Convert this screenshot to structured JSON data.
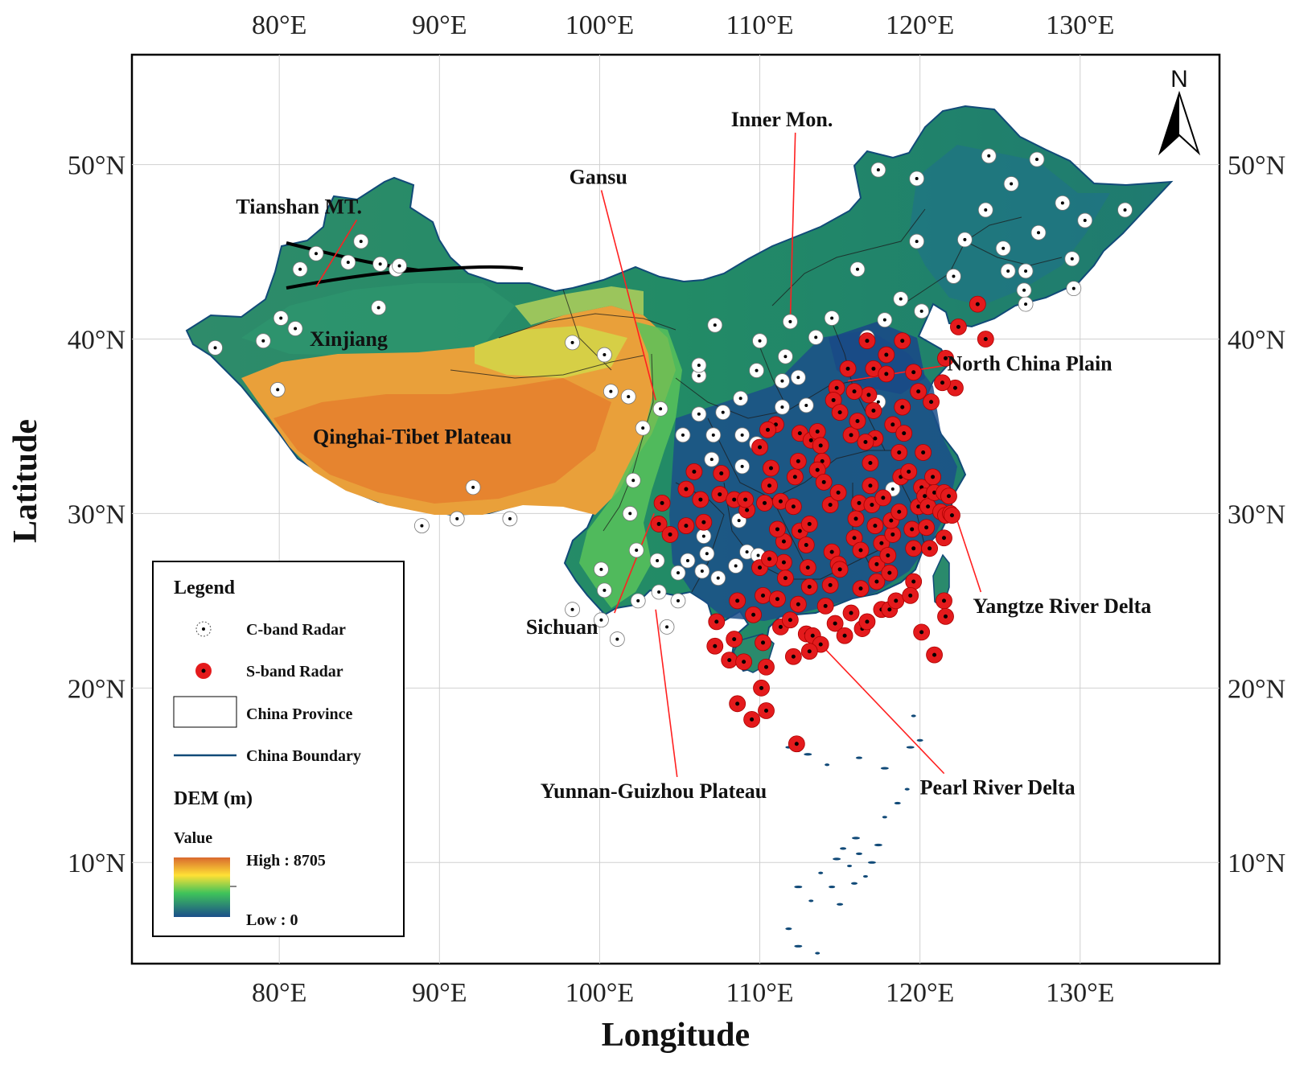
{
  "axes": {
    "x_title": "Longitude",
    "y_title": "Latitude",
    "lon_ticks": [
      {
        "value": 80,
        "label": "80°E"
      },
      {
        "value": 90,
        "label": "90°E"
      },
      {
        "value": 100,
        "label": "100°E"
      },
      {
        "value": 110,
        "label": "110°E"
      },
      {
        "value": 120,
        "label": "120°E"
      },
      {
        "value": 130,
        "label": "130°E"
      }
    ],
    "lat_ticks": [
      {
        "value": 50,
        "label": "50°N"
      },
      {
        "value": 40,
        "label": "40°N"
      },
      {
        "value": 30,
        "label": "30°N"
      },
      {
        "value": 20,
        "label": "20°N"
      },
      {
        "value": 10,
        "label": "10°N"
      }
    ],
    "lon_range": [
      70.8,
      138.7
    ],
    "lat_range": [
      4.2,
      56.3
    ]
  },
  "north_arrow": {
    "label": "N"
  },
  "labels": [
    {
      "id": "tianshan",
      "text": "Tianshan MT.",
      "lon": 77.3,
      "lat": 47.2,
      "leader_to": [
        82.3,
        43.0
      ]
    },
    {
      "id": "xinjiang",
      "text": "Xinjiang",
      "lon": 81.9,
      "lat": 39.6
    },
    {
      "id": "gansu",
      "text": "Gansu",
      "lon": 98.1,
      "lat": 48.9,
      "leader_to": [
        103.5,
        36.5
      ]
    },
    {
      "id": "inner-mon",
      "text": "Inner Mon.",
      "lon": 108.2,
      "lat": 52.2,
      "leader_to": [
        111.9,
        41.0
      ]
    },
    {
      "id": "north-china-plain",
      "text": "North China Plain",
      "lon": 121.7,
      "lat": 38.2,
      "leader_to": [
        115.5,
        37.6
      ]
    },
    {
      "id": "qinghai-tibet",
      "text": "Qinghai-Tibet Plateau",
      "lon": 82.1,
      "lat": 34.0
    },
    {
      "id": "sichuan",
      "text": "Sichuan",
      "lon": 95.4,
      "lat": 23.1,
      "leader_to": [
        103.4,
        30.0
      ]
    },
    {
      "id": "yunnan-guizhou",
      "text": "Yunnan-Guizhou Plateau",
      "lon": 96.3,
      "lat": 13.7,
      "leader_to": [
        103.5,
        24.5
      ]
    },
    {
      "id": "yangtze",
      "text": "Yangtze River Delta",
      "lon": 123.3,
      "lat": 24.3,
      "leader_to": [
        122.0,
        30.5
      ]
    },
    {
      "id": "pearl",
      "text": "Pearl River Delta",
      "lon": 120.0,
      "lat": 13.9,
      "leader_to": [
        113.8,
        22.5
      ]
    }
  ],
  "legend": {
    "title": "Legend",
    "items": [
      {
        "id": "c-band",
        "label": "C-band Radar"
      },
      {
        "id": "s-band",
        "label": "S-band Radar"
      },
      {
        "id": "province",
        "label": "China Province"
      },
      {
        "id": "boundary",
        "label": "China Boundary"
      }
    ],
    "dem_title": "DEM (m)",
    "value_label": "Value",
    "high_label": "High : 8705",
    "low_label": "Low : 0"
  },
  "colors": {
    "c_band": "#ffffff",
    "s_band": "#e41a1c",
    "boundary": "#114a78",
    "province": "#1b1b1b",
    "lowland": "#1b4f8a",
    "plain": "#1f8a6c",
    "hills": "#3cb371",
    "plateau": "#e9a03a",
    "high_plateau": "#e4772b",
    "desert": "#d6cf46",
    "leader": "#ff2020"
  },
  "stations": {
    "c_band": [
      [
        76,
        39.5
      ],
      [
        79,
        39.9
      ],
      [
        79.9,
        37.1
      ],
      [
        80.1,
        41.2
      ],
      [
        81,
        40.6
      ],
      [
        81.3,
        44.0
      ],
      [
        82.3,
        44.9
      ],
      [
        84.3,
        44.4
      ],
      [
        85.1,
        45.6
      ],
      [
        86.3,
        44.3
      ],
      [
        87.3,
        44.0
      ],
      [
        87.5,
        44.2
      ],
      [
        86.2,
        41.8
      ],
      [
        88.9,
        29.3
      ],
      [
        91.1,
        29.7
      ],
      [
        92.1,
        31.5
      ],
      [
        94.4,
        29.7
      ],
      [
        98.3,
        39.8
      ],
      [
        100.3,
        39.1
      ],
      [
        100.7,
        37.0
      ],
      [
        101.8,
        36.7
      ],
      [
        103.8,
        36.0
      ],
      [
        102.7,
        34.9
      ],
      [
        102.1,
        31.9
      ],
      [
        101.9,
        30.0
      ],
      [
        102.3,
        27.9
      ],
      [
        100.1,
        26.8
      ],
      [
        100.3,
        25.6
      ],
      [
        100.1,
        23.9
      ],
      [
        98.3,
        24.5
      ],
      [
        101.1,
        22.8
      ],
      [
        102.4,
        25.0
      ],
      [
        103.7,
        25.5
      ],
      [
        103.6,
        27.3
      ],
      [
        104.2,
        23.5
      ],
      [
        104.9,
        25.0
      ],
      [
        105.5,
        27.3
      ],
      [
        104.9,
        26.6
      ],
      [
        106.4,
        26.7
      ],
      [
        106.5,
        28.7
      ],
      [
        106.7,
        27.7
      ],
      [
        107.4,
        26.3
      ],
      [
        108.5,
        27.0
      ],
      [
        109.2,
        27.8
      ],
      [
        109.9,
        27.6
      ],
      [
        108.7,
        29.6
      ],
      [
        107,
        33.1
      ],
      [
        108.9,
        32.7
      ],
      [
        105.2,
        34.5
      ],
      [
        106.2,
        35.7
      ],
      [
        107.1,
        34.5
      ],
      [
        107.7,
        35.8
      ],
      [
        108.9,
        34.5
      ],
      [
        109.8,
        34.0
      ],
      [
        106.2,
        37.9
      ],
      [
        106.2,
        38.5
      ],
      [
        107.2,
        40.8
      ],
      [
        108.8,
        36.6
      ],
      [
        109.8,
        38.2
      ],
      [
        110,
        39.9
      ],
      [
        111.4,
        37.6
      ],
      [
        111.6,
        39.0
      ],
      [
        112.4,
        37.8
      ],
      [
        112.9,
        36.2
      ],
      [
        113.5,
        40.1
      ],
      [
        111.9,
        41.0
      ],
      [
        111.4,
        36.1
      ],
      [
        114.5,
        41.2
      ],
      [
        116.7,
        40.1
      ],
      [
        117.8,
        41.1
      ],
      [
        117.4,
        36.4
      ],
      [
        118.8,
        42.3
      ],
      [
        120.1,
        41.6
      ],
      [
        117.4,
        49.7
      ],
      [
        119.8,
        49.2
      ],
      [
        119.8,
        45.6
      ],
      [
        116.1,
        44.0
      ],
      [
        122.1,
        43.6
      ],
      [
        122.8,
        45.7
      ],
      [
        124.1,
        47.4
      ],
      [
        124.3,
        50.5
      ],
      [
        125.2,
        45.2
      ],
      [
        125.7,
        48.9
      ],
      [
        125.5,
        43.9
      ],
      [
        126.6,
        43.9
      ],
      [
        126.5,
        42.8
      ],
      [
        126.6,
        42.0
      ],
      [
        127.3,
        50.3
      ],
      [
        127.4,
        46.1
      ],
      [
        128.9,
        47.8
      ],
      [
        129.5,
        44.6
      ],
      [
        129.6,
        42.9
      ],
      [
        130.3,
        46.8
      ],
      [
        132.8,
        47.4
      ],
      [
        118.3,
        31.4
      ]
    ],
    "s_band": [
      [
        103.9,
        30.6
      ],
      [
        103.7,
        29.4
      ],
      [
        104.4,
        28.8
      ],
      [
        105.4,
        29.3
      ],
      [
        105.4,
        31.4
      ],
      [
        105.9,
        32.4
      ],
      [
        106.5,
        29.5
      ],
      [
        106.3,
        30.8
      ],
      [
        107.5,
        31.1
      ],
      [
        107.6,
        32.3
      ],
      [
        108.4,
        30.8
      ],
      [
        109.2,
        30.2
      ],
      [
        109.1,
        30.8
      ],
      [
        110.3,
        30.6
      ],
      [
        110.6,
        31.6
      ],
      [
        110.7,
        32.6
      ],
      [
        111.3,
        30.7
      ],
      [
        111.5,
        28.4
      ],
      [
        111.1,
        29.1
      ],
      [
        111.5,
        27.2
      ],
      [
        111.6,
        26.3
      ],
      [
        112.1,
        30.4
      ],
      [
        112.5,
        29.0
      ],
      [
        112.2,
        32.1
      ],
      [
        112.4,
        33.0
      ],
      [
        112.5,
        34.6
      ],
      [
        113.2,
        34.2
      ],
      [
        113.6,
        34.7
      ],
      [
        113.8,
        33.9
      ],
      [
        113.9,
        33.0
      ],
      [
        113.6,
        32.5
      ],
      [
        114.0,
        31.8
      ],
      [
        114.4,
        30.5
      ],
      [
        114.9,
        31.2
      ],
      [
        113.1,
        29.4
      ],
      [
        112.9,
        28.2
      ],
      [
        113.0,
        26.9
      ],
      [
        113.1,
        25.8
      ],
      [
        112.4,
        24.8
      ],
      [
        112.9,
        23.1
      ],
      [
        113.3,
        23.0
      ],
      [
        113.8,
        22.5
      ],
      [
        112.1,
        21.8
      ],
      [
        113.1,
        22.1
      ],
      [
        114.5,
        27.8
      ],
      [
        114.9,
        27.1
      ],
      [
        115.9,
        28.6
      ],
      [
        116.0,
        29.7
      ],
      [
        116.2,
        30.6
      ],
      [
        116.9,
        31.6
      ],
      [
        116.9,
        32.9
      ],
      [
        117.0,
        30.5
      ],
      [
        117.2,
        34.3
      ],
      [
        117.1,
        35.9
      ],
      [
        117.2,
        29.3
      ],
      [
        117.7,
        30.9
      ],
      [
        117.6,
        28.3
      ],
      [
        117.3,
        27.1
      ],
      [
        117.3,
        26.1
      ],
      [
        117.6,
        24.5
      ],
      [
        118.1,
        24.5
      ],
      [
        118.5,
        25.0
      ],
      [
        118.1,
        26.6
      ],
      [
        118.0,
        27.6
      ],
      [
        118.3,
        28.8
      ],
      [
        118.2,
        29.6
      ],
      [
        118.7,
        30.1
      ],
      [
        118.8,
        32.1
      ],
      [
        118.7,
        33.5
      ],
      [
        118.3,
        35.1
      ],
      [
        118.9,
        36.1
      ],
      [
        119.0,
        34.6
      ],
      [
        119.3,
        32.4
      ],
      [
        119.5,
        29.1
      ],
      [
        119.6,
        28.0
      ],
      [
        119.9,
        30.4
      ],
      [
        120.1,
        31.5
      ],
      [
        120.2,
        33.5
      ],
      [
        120.3,
        31.0
      ],
      [
        120.4,
        29.2
      ],
      [
        120.6,
        28.0
      ],
      [
        119.6,
        26.1
      ],
      [
        119.4,
        25.3
      ],
      [
        120.1,
        23.2
      ],
      [
        120.5,
        30.4
      ],
      [
        120.8,
        32.1
      ],
      [
        120.9,
        31.2
      ],
      [
        121.3,
        30.1
      ],
      [
        121.5,
        31.2
      ],
      [
        121.6,
        29.9
      ],
      [
        121.8,
        31.0
      ],
      [
        121.9,
        30.0
      ],
      [
        121.5,
        28.6
      ],
      [
        121.5,
        25.0
      ],
      [
        121.6,
        24.1
      ],
      [
        120.9,
        21.9
      ],
      [
        122.0,
        29.9
      ],
      [
        122.2,
        37.2
      ],
      [
        121.4,
        37.5
      ],
      [
        120.7,
        36.4
      ],
      [
        119.9,
        37.0
      ],
      [
        121.6,
        38.9
      ],
      [
        122.4,
        40.7
      ],
      [
        123.6,
        42.0
      ],
      [
        124.1,
        40.0
      ],
      [
        118.9,
        39.9
      ],
      [
        117.9,
        39.1
      ],
      [
        117.1,
        38.3
      ],
      [
        116.7,
        39.9
      ],
      [
        115.5,
        38.3
      ],
      [
        114.8,
        37.2
      ],
      [
        114.6,
        36.5
      ],
      [
        115.0,
        35.8
      ],
      [
        115.7,
        34.5
      ],
      [
        116.1,
        35.3
      ],
      [
        116.6,
        34.1
      ],
      [
        117.9,
        38.0
      ],
      [
        116.8,
        36.8
      ],
      [
        119.6,
        38.1
      ],
      [
        115.9,
        37.0
      ],
      [
        111.0,
        35.1
      ],
      [
        110.5,
        34.8
      ],
      [
        110.0,
        33.8
      ],
      [
        109.6,
        24.2
      ],
      [
        108.4,
        22.8
      ],
      [
        108.6,
        25.0
      ],
      [
        107.3,
        23.8
      ],
      [
        107.2,
        22.4
      ],
      [
        108.1,
        21.6
      ],
      [
        109.0,
        21.5
      ],
      [
        110.2,
        22.6
      ],
      [
        110.4,
        21.2
      ],
      [
        110.1,
        20.0
      ],
      [
        110.4,
        18.7
      ],
      [
        109.5,
        18.2
      ],
      [
        108.6,
        19.1
      ],
      [
        111.3,
        23.5
      ],
      [
        111.9,
        23.9
      ],
      [
        114.7,
        23.7
      ],
      [
        115.3,
        23.0
      ],
      [
        116.4,
        23.4
      ],
      [
        116.7,
        23.8
      ],
      [
        115.7,
        24.3
      ],
      [
        114.1,
        24.7
      ],
      [
        114.4,
        25.9
      ],
      [
        115.0,
        26.8
      ],
      [
        116.3,
        25.7
      ],
      [
        116.3,
        27.9
      ],
      [
        110.2,
        25.3
      ],
      [
        111.1,
        25.1
      ],
      [
        110.0,
        26.9
      ],
      [
        110.6,
        27.4
      ],
      [
        112.3,
        16.8
      ]
    ]
  }
}
